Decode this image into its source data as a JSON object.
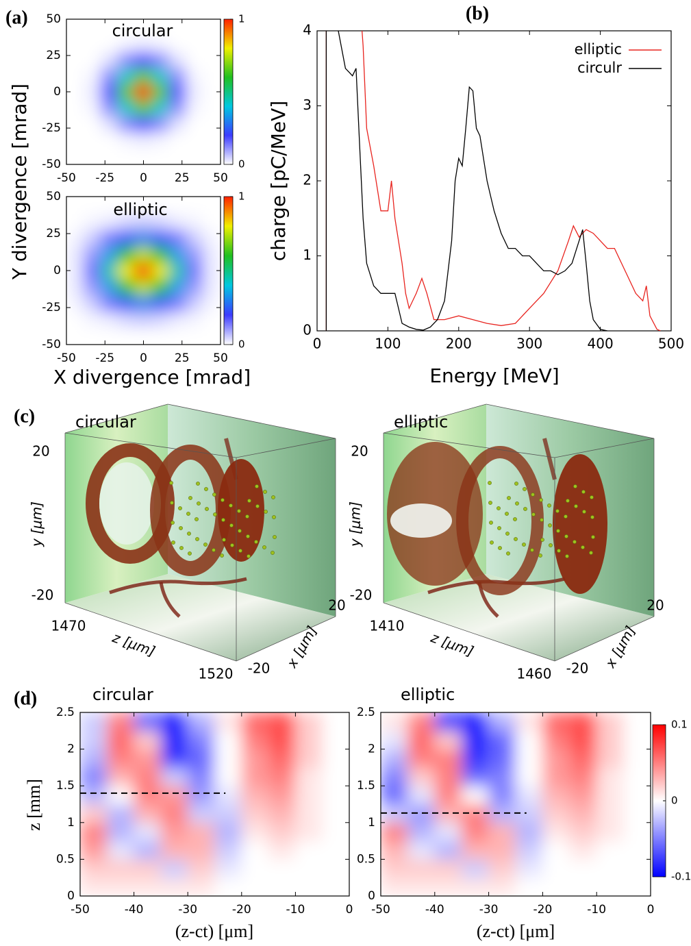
{
  "chart_data": [
    {
      "type": "heatmap",
      "panel": "(a)",
      "title": "circular",
      "ylabel": "Y divergence [mrad]",
      "x": [
        -44.4,
        -33.3,
        -22.2,
        -11.1,
        0,
        11.1,
        22.2,
        33.3,
        44.4
      ],
      "y": [
        -44.4,
        -33.3,
        -22.2,
        -11.1,
        0,
        11.1,
        22.2,
        33.3,
        44.4
      ],
      "values": [
        [
          0,
          0,
          0,
          0,
          0,
          0,
          0,
          0,
          0
        ],
        [
          0,
          0,
          0,
          0.01,
          0.02,
          0.01,
          0,
          0,
          0
        ],
        [
          0,
          0,
          0.03,
          0.12,
          0.18,
          0.12,
          0.03,
          0,
          0
        ],
        [
          0,
          0.01,
          0.12,
          0.42,
          0.65,
          0.42,
          0.12,
          0.01,
          0
        ],
        [
          0,
          0.02,
          0.18,
          0.65,
          1,
          0.65,
          0.18,
          0.02,
          0
        ],
        [
          0,
          0.01,
          0.12,
          0.42,
          0.65,
          0.42,
          0.12,
          0.01,
          0
        ],
        [
          0,
          0,
          0.03,
          0.12,
          0.18,
          0.12,
          0.03,
          0,
          0
        ],
        [
          0,
          0,
          0,
          0.01,
          0.02,
          0.01,
          0,
          0,
          0
        ],
        [
          0,
          0,
          0,
          0,
          0,
          0,
          0,
          0,
          0
        ]
      ],
      "xlim": [
        -50,
        50
      ],
      "ylim": [
        -50,
        50
      ],
      "xticks": [
        -50,
        -25,
        0,
        25,
        50
      ],
      "yticks": [
        -50,
        -25,
        0,
        25,
        50
      ],
      "clim": [
        0,
        1
      ],
      "cticks": [
        0,
        1
      ],
      "colormap": [
        "#ffffff",
        "#3c3cff",
        "#00c8e0",
        "#20c020",
        "#f0f000",
        "#ff2000"
      ]
    },
    {
      "type": "heatmap",
      "title": "elliptic",
      "xlabel": "X divergence [mrad]",
      "x": [
        -44.4,
        -33.3,
        -22.2,
        -11.1,
        0,
        11.1,
        22.2,
        33.3,
        44.4
      ],
      "y": [
        -44.4,
        -33.3,
        -22.2,
        -11.1,
        0,
        11.1,
        22.2,
        33.3,
        44.4
      ],
      "values": [
        [
          0,
          0,
          0,
          0,
          0,
          0,
          0,
          0,
          0
        ],
        [
          0,
          0.01,
          0.02,
          0.04,
          0.05,
          0.04,
          0.02,
          0.01,
          0
        ],
        [
          0.01,
          0.05,
          0.14,
          0.24,
          0.3,
          0.24,
          0.14,
          0.05,
          0.01
        ],
        [
          0.02,
          0.11,
          0.34,
          0.6,
          0.75,
          0.6,
          0.34,
          0.11,
          0.02
        ],
        [
          0.02,
          0.15,
          0.45,
          0.8,
          1,
          0.8,
          0.45,
          0.15,
          0.02
        ],
        [
          0.02,
          0.11,
          0.34,
          0.6,
          0.75,
          0.6,
          0.34,
          0.11,
          0.02
        ],
        [
          0.01,
          0.05,
          0.14,
          0.24,
          0.3,
          0.24,
          0.14,
          0.05,
          0.01
        ],
        [
          0,
          0.01,
          0.02,
          0.04,
          0.05,
          0.04,
          0.02,
          0.01,
          0
        ],
        [
          0,
          0,
          0,
          0,
          0,
          0,
          0,
          0,
          0
        ]
      ],
      "xlim": [
        -50,
        50
      ],
      "ylim": [
        -50,
        50
      ],
      "xticks": [
        -50,
        -25,
        0,
        25,
        50
      ],
      "yticks": [
        -50,
        -25,
        0,
        25,
        50
      ],
      "clim": [
        0,
        1
      ],
      "cticks": [
        0,
        1
      ],
      "colormap": [
        "#ffffff",
        "#3c3cff",
        "#00c8e0",
        "#20c020",
        "#f0f000",
        "#ff2000"
      ]
    },
    {
      "type": "line",
      "panel": "(b)",
      "xlabel": "Energy [MeV]",
      "ylabel": "charge [pC/MeV]",
      "xlim": [
        0,
        500
      ],
      "ylim": [
        0,
        4
      ],
      "xticks": [
        0,
        100,
        200,
        300,
        400,
        500
      ],
      "yticks": [
        0,
        1,
        2,
        3,
        4
      ],
      "legend": "top-right",
      "series": [
        {
          "name": "elliptic",
          "color": "#e8231e",
          "x": [
            13,
            13,
            40,
            62,
            65,
            70,
            80,
            90,
            100,
            105,
            110,
            120,
            125,
            130,
            140,
            148,
            155,
            165,
            180,
            200,
            220,
            240,
            260,
            280,
            300,
            320,
            340,
            355,
            362,
            370,
            380,
            390,
            400,
            410,
            420,
            430,
            440,
            450,
            460,
            465,
            470,
            480,
            485
          ],
          "values": [
            0,
            4.5,
            null,
            4.2,
            3.8,
            2.7,
            2.2,
            1.6,
            1.6,
            2.0,
            1.5,
            0.9,
            0.5,
            0.3,
            0.5,
            0.7,
            0.5,
            0.15,
            0.15,
            0.2,
            0.15,
            0.1,
            0.07,
            0.1,
            0.3,
            0.5,
            0.8,
            1.2,
            1.4,
            1.25,
            1.35,
            1.3,
            1.2,
            1.1,
            1.1,
            0.9,
            0.7,
            0.5,
            0.4,
            0.6,
            0.2,
            0.02,
            0
          ]
        },
        {
          "name": "circulr",
          "color": "#000000",
          "x": [
            13,
            13,
            18,
            22,
            26,
            30,
            40,
            50,
            55,
            60,
            65,
            70,
            80,
            90,
            100,
            110,
            115,
            120,
            130,
            140,
            150,
            160,
            170,
            180,
            190,
            195,
            200,
            205,
            210,
            215,
            220,
            225,
            230,
            240,
            245,
            250,
            260,
            270,
            280,
            290,
            300,
            310,
            320,
            330,
            340,
            350,
            360,
            370,
            375,
            380,
            385,
            390,
            400,
            410
          ],
          "values": [
            0,
            4.5,
            4.5,
            4.5,
            4.5,
            4.0,
            3.5,
            3.4,
            3.5,
            2.5,
            1.5,
            0.9,
            0.6,
            0.5,
            0.5,
            0.5,
            0.3,
            0.1,
            0.05,
            0.02,
            0.01,
            0.05,
            0.15,
            0.4,
            1.2,
            2.0,
            2.3,
            2.2,
            2.7,
            3.25,
            3.2,
            2.7,
            2.6,
            2.0,
            1.8,
            1.6,
            1.3,
            1.1,
            1.1,
            1.0,
            1.0,
            0.9,
            0.8,
            0.8,
            0.75,
            0.8,
            0.9,
            1.2,
            1.35,
            0.9,
            0.4,
            0.15,
            0.02,
            0
          ]
        }
      ]
    },
    {
      "type": "volume",
      "panel": "(c)",
      "title": "circular",
      "ylabel": "y [μm]",
      "zlabel": "z [μm]",
      "xlabel": "x [μm]",
      "yticks": [
        -20,
        20
      ],
      "zticks": [
        1470,
        1520
      ],
      "xticks": [
        -20,
        20
      ]
    },
    {
      "type": "volume",
      "title": "elliptic",
      "ylabel": "y [μm]",
      "zlabel": "z [μm]",
      "xlabel": "x [μm]",
      "yticks": [
        -20,
        20
      ],
      "zticks": [
        1410,
        1460
      ],
      "xticks": [
        -20,
        20
      ]
    },
    {
      "type": "heatmap",
      "panel": "(d)",
      "title": "circular",
      "ylabel": "z [mm]",
      "xlabel": "(z-ct) [μm]",
      "x": [
        -47.5,
        -42.5,
        -37.5,
        -32.5,
        -27.5,
        -22.5,
        -17.5,
        -12.5,
        -7.5,
        -2.5
      ],
      "y": [
        0.125,
        0.375,
        0.625,
        0.875,
        1.125,
        1.375,
        1.625,
        1.875,
        2.125,
        2.375
      ],
      "values": [
        [
          0.01,
          0.01,
          0.01,
          0.01,
          0.01,
          0,
          0,
          0,
          0,
          0
        ],
        [
          0.02,
          0.02,
          0.02,
          -0.02,
          0.02,
          -0.01,
          0,
          0,
          0,
          0
        ],
        [
          0.04,
          -0.01,
          -0.03,
          0.03,
          0.03,
          -0.02,
          0,
          0.01,
          0,
          0
        ],
        [
          0.05,
          -0.03,
          -0.01,
          0.04,
          0.03,
          -0.03,
          0.01,
          0.02,
          0.01,
          0
        ],
        [
          0.02,
          -0.03,
          0.03,
          0.05,
          -0.02,
          -0.02,
          0.02,
          0.03,
          0.01,
          0
        ],
        [
          -0.03,
          0,
          0.05,
          0.04,
          -0.04,
          -0.01,
          0.03,
          0.04,
          0.01,
          0
        ],
        [
          -0.05,
          0.03,
          0.05,
          -0.02,
          -0.05,
          0,
          0.04,
          0.05,
          0.01,
          0
        ],
        [
          -0.03,
          0.05,
          0.04,
          -0.08,
          -0.06,
          0,
          0.04,
          0.06,
          0.02,
          0
        ],
        [
          -0.02,
          0.06,
          0.02,
          -0.09,
          -0.05,
          0,
          0.05,
          0.07,
          0.02,
          0
        ],
        [
          -0.02,
          0.05,
          -0.06,
          -0.09,
          -0.03,
          0.01,
          0.06,
          0.07,
          0.02,
          0
        ]
      ],
      "xlim": [
        -50,
        0
      ],
      "ylim": [
        0,
        2.5
      ],
      "xticks": [
        -50,
        -40,
        -30,
        -20,
        -10,
        0
      ],
      "yticks": [
        0,
        0.5,
        1,
        1.5,
        2,
        2.5
      ],
      "clim": [
        -0.1,
        0.1
      ],
      "colormap": [
        "#0000ff",
        "#ffffff",
        "#ff0000"
      ],
      "cut": 1.4
    },
    {
      "type": "heatmap",
      "title": "elliptic",
      "xlabel": "(z-ct) [μm]",
      "x": [
        -47.5,
        -42.5,
        -37.5,
        -32.5,
        -27.5,
        -22.5,
        -17.5,
        -12.5,
        -7.5,
        -2.5
      ],
      "y": [
        0.125,
        0.375,
        0.625,
        0.875,
        1.125,
        1.375,
        1.625,
        1.875,
        2.125,
        2.375
      ],
      "values": [
        [
          0.01,
          0.01,
          0.01,
          0.01,
          0.01,
          0,
          0,
          0,
          0,
          0
        ],
        [
          0.02,
          0.02,
          0.02,
          -0.02,
          0.02,
          -0.01,
          0,
          0,
          0,
          0
        ],
        [
          0.03,
          -0.01,
          -0.03,
          0.03,
          0.03,
          -0.02,
          0,
          0.01,
          0,
          0
        ],
        [
          0.05,
          -0.03,
          -0.01,
          0.05,
          0.03,
          -0.03,
          0.01,
          0.02,
          0.01,
          0
        ],
        [
          -0.02,
          -0.04,
          0.03,
          0.05,
          -0.03,
          -0.02,
          0.02,
          0.03,
          0.01,
          0
        ],
        [
          -0.06,
          -0.01,
          0.05,
          0,
          -0.05,
          -0.01,
          0.03,
          0.04,
          0.01,
          0
        ],
        [
          -0.05,
          0.02,
          0.05,
          -0.06,
          -0.05,
          0,
          0.04,
          0.05,
          0.01,
          0
        ],
        [
          -0.03,
          0.05,
          0.05,
          -0.08,
          -0.06,
          0,
          0.04,
          0.06,
          0.02,
          0
        ],
        [
          -0.01,
          0.06,
          0.02,
          -0.09,
          -0.06,
          0,
          0.05,
          0.07,
          0.02,
          0
        ],
        [
          0.01,
          0.05,
          -0.08,
          -0.09,
          -0.03,
          0.01,
          0.06,
          0.07,
          0.02,
          0
        ]
      ],
      "xlim": [
        -50,
        0
      ],
      "ylim": [
        0,
        2.5
      ],
      "xticks": [
        -50,
        -40,
        -30,
        -20,
        -10,
        0
      ],
      "yticks": [
        0,
        0.5,
        1,
        1.5,
        2,
        2.5
      ],
      "clim": [
        -0.1,
        0.1
      ],
      "cticks": [
        -0.1,
        0,
        0.1
      ],
      "colormap": [
        "#0000ff",
        "#ffffff",
        "#ff0000"
      ],
      "cut": 1.13
    }
  ]
}
